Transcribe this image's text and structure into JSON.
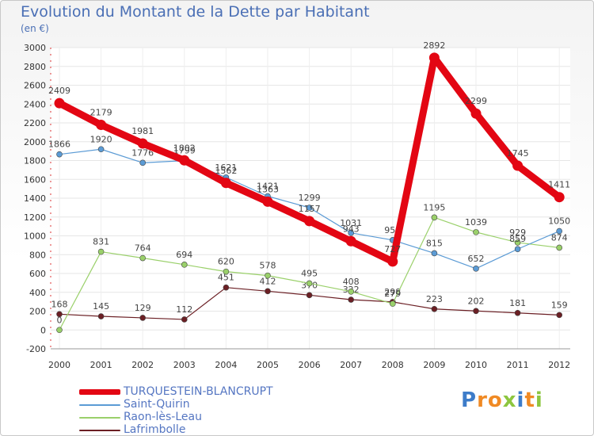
{
  "header": {
    "title": "Evolution du Montant de la Dette par Habitant",
    "unit": "(en €)"
  },
  "brand": {
    "letters": [
      {
        "ch": "P",
        "color": "#3d7cc9"
      },
      {
        "ch": "r",
        "color": "#f08a24"
      },
      {
        "ch": "o",
        "color": "#f08a24"
      },
      {
        "ch": "x",
        "color": "#8dc63f"
      },
      {
        "ch": "i",
        "color": "#3d7cc9"
      },
      {
        "ch": "t",
        "color": "#f08a24"
      },
      {
        "ch": "i",
        "color": "#8dc63f"
      }
    ]
  },
  "chart_data": {
    "type": "line",
    "x": [
      2000,
      2001,
      2002,
      2003,
      2004,
      2005,
      2006,
      2007,
      2008,
      2009,
      2010,
      2011,
      2012
    ],
    "ylim": [
      -200,
      3000
    ],
    "yticks": [
      -200,
      0,
      200,
      400,
      600,
      800,
      1000,
      1200,
      1400,
      1600,
      1800,
      2000,
      2200,
      2400,
      2600,
      2800,
      3000
    ],
    "grid": true,
    "legend": "bottom-left",
    "series": [
      {
        "name": "TURQUESTEIN-BLANCRUPT",
        "color": "#e30613",
        "values": [
          2409,
          2179,
          1981,
          1802,
          1562,
          1363,
          1157,
          943,
          727,
          2892,
          2299,
          1745,
          1411
        ]
      },
      {
        "name": "Saint-Quirin",
        "color": "#5b9bd5",
        "values": [
          1866,
          1920,
          1776,
          1799,
          1621,
          1421,
          1299,
          1031,
          955,
          815,
          652,
          859,
          1050
        ]
      },
      {
        "name": "Raon-lès-Leau",
        "color": "#9ad06a",
        "values": [
          0,
          831,
          764,
          694,
          620,
          578,
          495,
          408,
          279,
          1195,
          1039,
          929,
          874
        ]
      },
      {
        "name": "Lafrimbolle",
        "color": "#6b1f24",
        "values": [
          168,
          145,
          129,
          112,
          451,
          412,
          370,
          322,
          298,
          223,
          202,
          181,
          159
        ]
      }
    ]
  }
}
